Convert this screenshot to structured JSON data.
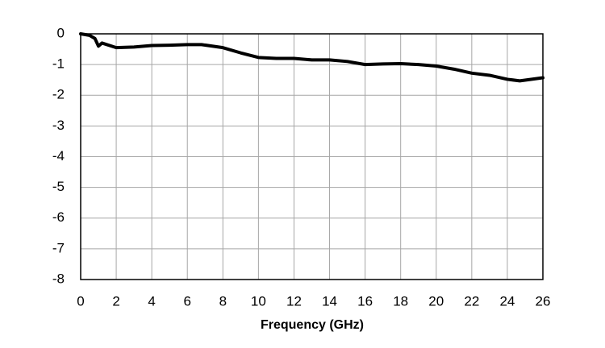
{
  "chart_data": {
    "type": "line",
    "x_label": "Frequency (GHz)",
    "x": [
      0,
      0.5,
      0.8,
      1.0,
      1.2,
      2,
      3,
      4,
      5,
      6,
      6.8,
      8,
      9,
      10,
      11,
      12,
      13,
      14,
      15,
      16,
      17,
      18,
      19,
      20,
      21,
      22,
      23,
      24,
      24.7,
      25.5,
      26
    ],
    "series": [
      {
        "color": "#000000",
        "values": [
          0,
          -0.05,
          -0.15,
          -0.4,
          -0.3,
          -0.45,
          -0.43,
          -0.38,
          -0.37,
          -0.35,
          -0.35,
          -0.45,
          -0.62,
          -0.77,
          -0.8,
          -0.8,
          -0.85,
          -0.85,
          -0.9,
          -1.0,
          -0.98,
          -0.97,
          -1.0,
          -1.05,
          -1.15,
          -1.28,
          -1.35,
          -1.48,
          -1.53,
          -1.47,
          -1.43
        ]
      }
    ],
    "xlim": [
      0,
      26
    ],
    "xticks": [
      0,
      2,
      4,
      6,
      8,
      10,
      12,
      14,
      16,
      18,
      20,
      22,
      24,
      26
    ],
    "ylim": [
      -8,
      0
    ],
    "yticks": [
      0,
      -1,
      -2,
      -3,
      -4,
      -5,
      -6,
      -7,
      -8
    ],
    "grid": true
  }
}
